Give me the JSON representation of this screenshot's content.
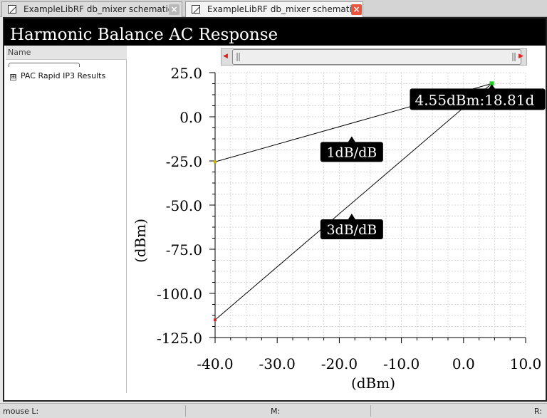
{
  "tabs": [
    {
      "label": "ExampleLibRF db_mixer schematic",
      "active": false
    },
    {
      "label": "ExampleLibRF db_mixer schematic",
      "active": true
    }
  ],
  "window": {
    "title": "Harmonic Balance AC Response"
  },
  "left_panel": {
    "header": "Name",
    "tree": [
      {
        "label": "PAC Rapid IP3 Results",
        "expander": "⊞"
      }
    ]
  },
  "status": {
    "left": "mouse L:",
    "middle": "M:",
    "right": "R:"
  },
  "chart_data": {
    "type": "line",
    "title": "",
    "xlabel": "(dBm)",
    "ylabel": "(dBm)",
    "xlim": [
      -40,
      10
    ],
    "ylim": [
      -125,
      25
    ],
    "xticks": [
      "-40.0",
      "-30.0",
      "-20.0",
      "-10.0",
      "0.0",
      "10.0"
    ],
    "yticks": [
      "25.0",
      "0.0",
      "-25.0",
      "-50.0",
      "-75.0",
      "-100.0",
      "-125.0"
    ],
    "grid": true,
    "series": [
      {
        "x": [
          -40,
          4.55
        ],
        "y": [
          -25.5,
          18.81
        ],
        "color": "#000000"
      },
      {
        "x": [
          -40,
          4.55
        ],
        "y": [
          -115,
          18.81
        ],
        "color": "#000000"
      }
    ],
    "annotations": [
      {
        "text": "1dB/dB",
        "x": -18,
        "y": -7
      },
      {
        "text": "3dB/dB",
        "x": -18,
        "y": -50
      },
      {
        "text": "4.55dBm:18.81d",
        "x": 4.55,
        "y": 18.81
      }
    ],
    "intercept": {
      "x": 4.55,
      "y": 18.81
    }
  },
  "colors": {
    "titlebar": "#000000",
    "close_active": "#e8553c",
    "marker": "#22cc22"
  }
}
